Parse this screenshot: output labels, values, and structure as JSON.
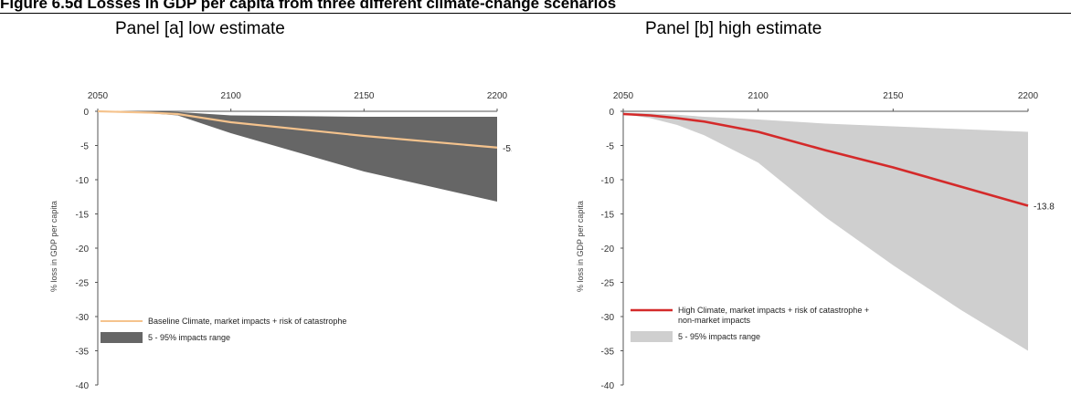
{
  "figure_title": "Figure 6.5d  Losses in GDP per capita from three different climate-change scenarios",
  "panels": [
    {
      "title": "Panel [a] low estimate"
    },
    {
      "title": "Panel [b] high estimate"
    }
  ],
  "chart_data": [
    {
      "type": "area",
      "title": "Panel [a] low estimate",
      "xlabel": "",
      "ylabel": "% loss in GDP per capita",
      "x_ticks": [
        2050,
        2100,
        2150,
        2200
      ],
      "y_ticks": [
        0,
        -5,
        -10,
        -15,
        -20,
        -25,
        -30,
        -35,
        -40
      ],
      "xlim": [
        2050,
        2200
      ],
      "ylim": [
        -40,
        0
      ],
      "x_axis_position": "top",
      "grid": false,
      "legend_position": "bottom-left",
      "end_label": "-5.3",
      "series": [
        {
          "name": "Baseline Climate, market impacts + risk of catastrophe",
          "type": "line",
          "color": "#f5c38d",
          "x": [
            2050,
            2060,
            2070,
            2080,
            2100,
            2150,
            2200
          ],
          "values": [
            0,
            -0.1,
            -0.2,
            -0.4,
            -1.6,
            -3.6,
            -5.3
          ]
        },
        {
          "name": "5 - 95% impacts range",
          "type": "band",
          "color": "#666666",
          "x": [
            2050,
            2060,
            2070,
            2080,
            2100,
            2150,
            2200
          ],
          "lower": [
            0,
            -0.1,
            -0.3,
            -0.6,
            -3.2,
            -8.8,
            -13.2
          ],
          "upper": [
            0,
            0,
            0,
            -0.1,
            -0.6,
            -0.8,
            -0.8
          ]
        }
      ]
    },
    {
      "type": "area",
      "title": "Panel [b] high estimate",
      "xlabel": "",
      "ylabel": "% loss in GDP per capita",
      "x_ticks": [
        2050,
        2100,
        2150,
        2200
      ],
      "y_ticks": [
        0,
        -5,
        -10,
        -15,
        -20,
        -25,
        -30,
        -35,
        -40
      ],
      "xlim": [
        2050,
        2200
      ],
      "ylim": [
        -40,
        0
      ],
      "x_axis_position": "top",
      "grid": false,
      "legend_position": "bottom-left",
      "end_label": "-13.8",
      "series": [
        {
          "name": "High Climate, market impacts + risk of catastrophe + non-market impacts",
          "name_lines": [
            "High Climate, market impacts + risk of catastrophe +",
            "non-market impacts"
          ],
          "type": "line",
          "color": "#d42a2a",
          "x": [
            2050,
            2060,
            2070,
            2080,
            2100,
            2125,
            2150,
            2175,
            2200
          ],
          "values": [
            -0.4,
            -0.6,
            -1.0,
            -1.5,
            -3.0,
            -5.7,
            -8.2,
            -11.0,
            -13.8
          ]
        },
        {
          "name": "5 - 95% impacts range",
          "type": "band",
          "color": "#cfcfcf",
          "x": [
            2050,
            2060,
            2070,
            2080,
            2100,
            2125,
            2150,
            2175,
            2200
          ],
          "lower": [
            -0.4,
            -1.0,
            -2.0,
            -3.5,
            -7.5,
            -15.5,
            -22.5,
            -29.0,
            -35.0
          ],
          "upper": [
            -0.2,
            -0.3,
            -0.5,
            -0.8,
            -1.2,
            -1.8,
            -2.2,
            -2.6,
            -3.0
          ]
        }
      ]
    }
  ]
}
